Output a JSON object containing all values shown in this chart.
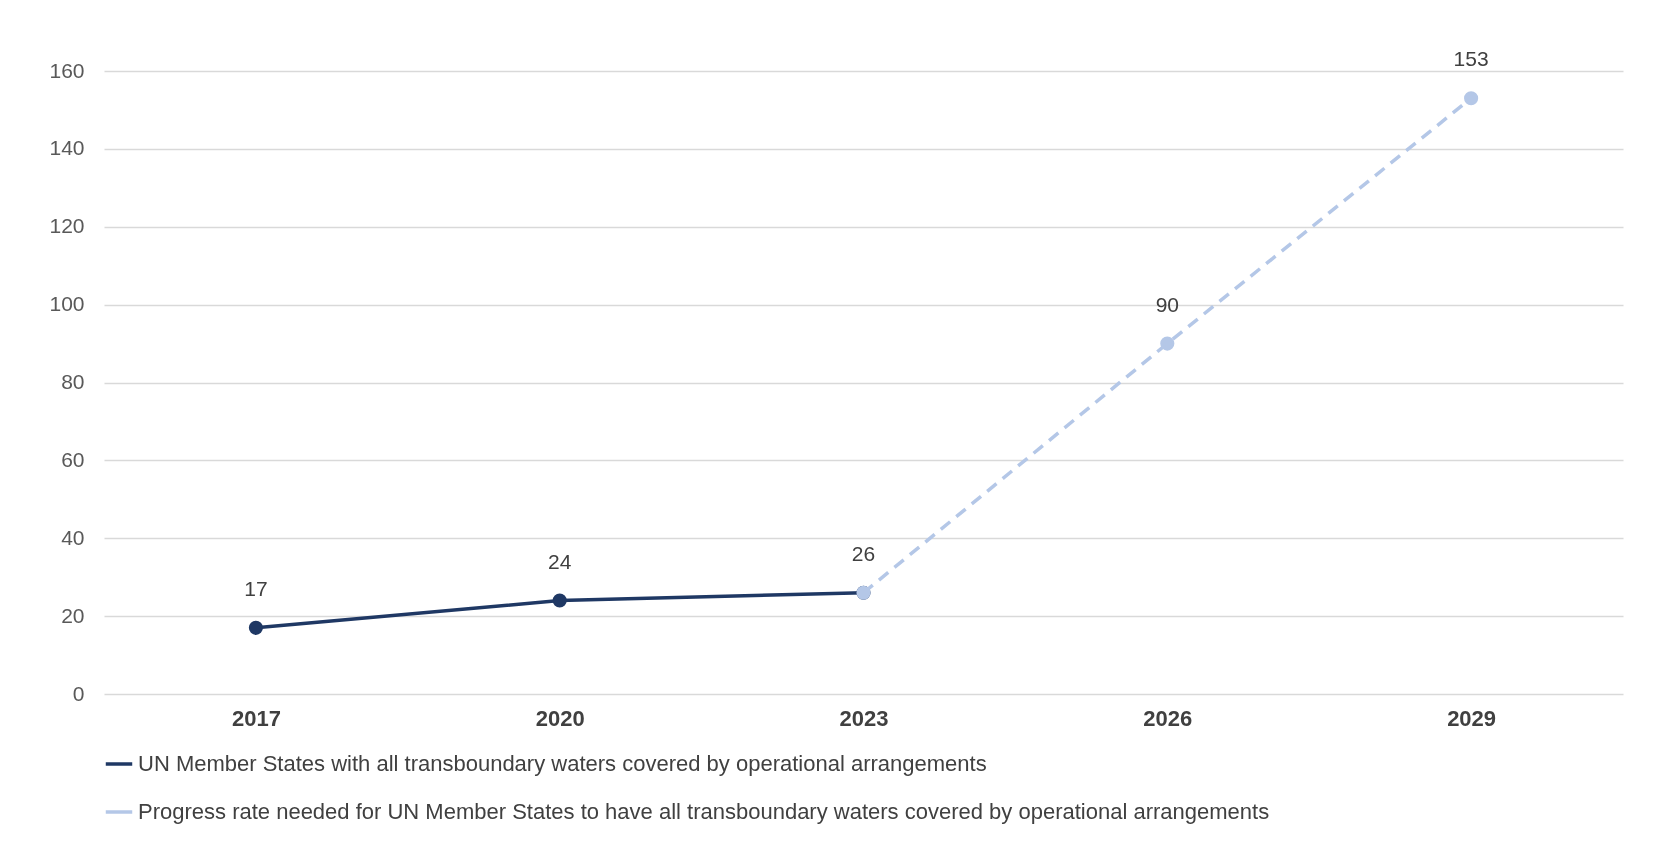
{
  "chart_data": {
    "type": "line",
    "categories": [
      "2017",
      "2020",
      "2023",
      "2026",
      "2029"
    ],
    "series": [
      {
        "name": "UN Member States with all transboundary waters covered by operational arrangements",
        "color": "#1f3864",
        "line_style": "solid",
        "values": [
          17,
          24,
          26,
          null,
          null
        ],
        "value_labels": [
          "17",
          "24",
          "26",
          null,
          null
        ]
      },
      {
        "name": "Progress rate needed for UN Member States to have all transboundary waters covered by operational arrangements",
        "color": "#b4c7e7",
        "line_style": "dashed",
        "values": [
          null,
          null,
          26,
          90,
          153
        ],
        "value_labels": [
          null,
          null,
          null,
          "90",
          "153"
        ]
      }
    ],
    "ylim": [
      0,
      160
    ],
    "yticks": [
      0,
      20,
      40,
      60,
      80,
      100,
      120,
      140,
      160
    ],
    "grid": "y",
    "legend": "bottom",
    "marker": "circle"
  }
}
